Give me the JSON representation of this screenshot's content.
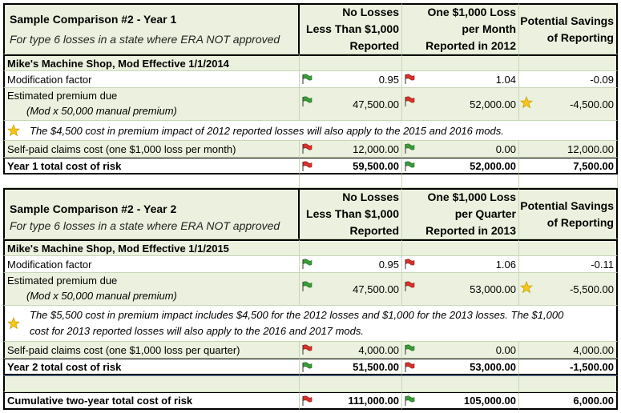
{
  "table1": {
    "title": "Sample Comparison #2 - Year 1",
    "subtitle": "For type 6 losses in a state where ERA NOT approved",
    "col1_header": [
      "No Losses",
      "Less Than $1,000",
      "Reported"
    ],
    "col2_header": [
      "One $1,000 Loss",
      "per Month",
      "Reported in 2012"
    ],
    "col3_header": [
      "Potential Savings",
      "of Reporting"
    ],
    "company": "Mike's Machine Shop, Mod Effective 1/1/2014",
    "mod_label": "Modification factor",
    "mod_values": [
      "0.95",
      "1.04",
      "-0.09"
    ],
    "premium_label": "Estimated premium due",
    "premium_sublabel": "(Mod x 50,000 manual premium)",
    "premium_values": [
      "47,500.00",
      "52,000.00",
      "-4,500.00"
    ],
    "note": "The $4,500 cost in premium impact of 2012 reported losses will also apply to the 2015 and 2016 mods.",
    "claims_label": "Self-paid claims cost (one $1,000 loss per month)",
    "claims_values": [
      "12,000.00",
      "0.00",
      "12,000.00"
    ],
    "total_label": "Year 1 total cost of risk",
    "total_values": [
      "59,500.00",
      "52,000.00",
      "7,500.00"
    ]
  },
  "table2": {
    "title": "Sample Comparison #2 - Year 2",
    "subtitle": "For type 6 losses in a state where ERA NOT approved",
    "col1_header": [
      "No Losses",
      "Less Than $1,000",
      "Reported"
    ],
    "col2_header": [
      "One $1,000 Loss",
      "per Quarter",
      "Reported in 2013"
    ],
    "col3_header": [
      "Potential Savings",
      "of Reporting"
    ],
    "company": "Mike's Machine Shop, Mod Effective 1/1/2015",
    "mod_label": "Modification factor",
    "mod_values": [
      "0.95",
      "1.06",
      "-0.11"
    ],
    "premium_label": "Estimated premium due",
    "premium_sublabel": "(Mod x 50,000 manual premium)",
    "premium_values": [
      "47,500.00",
      "53,000.00",
      "-5,500.00"
    ],
    "note_line1": "The $5,500 cost in premium impact includes $4,500 for the 2012 losses and $1,000 for the 2013 losses. The $1,000",
    "note_line2": "cost for 2013 reported losses will also apply to the 2016 and 2017 mods.",
    "claims_label": "Self-paid claims cost (one $1,000 loss per quarter)",
    "claims_values": [
      "4,000.00",
      "0.00",
      "4,000.00"
    ],
    "total_label": "Year 2 total cost of risk",
    "total_values": [
      "51,500.00",
      "53,000.00",
      "-1,500.00"
    ]
  },
  "cumulative": {
    "label": "Cumulative two-year total cost of risk",
    "values": [
      "111,000.00",
      "105,000.00",
      "6,000.00"
    ]
  },
  "icons": {
    "flag_green": "#3a9a3a",
    "flag_red": "#d9302a",
    "star": "#f5c518"
  }
}
